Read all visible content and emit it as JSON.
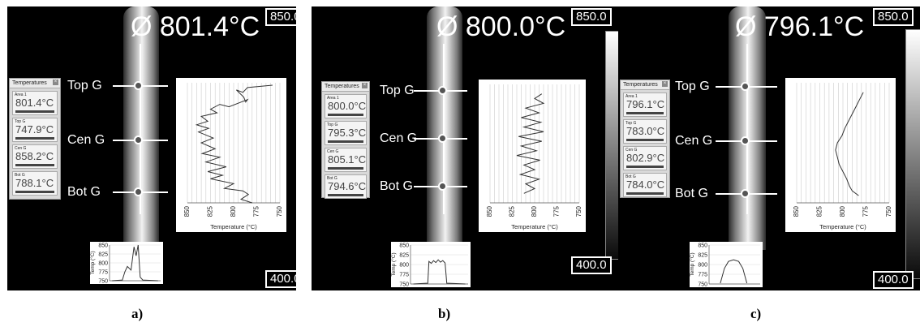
{
  "panels": [
    {
      "caption": "a)",
      "average": "Ø 801.4°C",
      "scale_max": "850.0",
      "scale_min": "400.0",
      "gauges": [
        "Top G",
        "Cen G",
        "Bot G"
      ],
      "temps_window": {
        "title": "Temperatures",
        "entries": [
          {
            "name": "Area 1",
            "value": "801.4°C"
          },
          {
            "name": "Top G",
            "value": "747.9°C"
          },
          {
            "name": "Cen G",
            "value": "858.2°C"
          },
          {
            "name": "Bot G",
            "value": "788.1°C"
          }
        ]
      },
      "profile_chart": {
        "x_ticks": [
          "850",
          "825",
          "800",
          "775",
          "750"
        ],
        "x_label": "Temperature (°C)",
        "points": [
          [
            758,
            2
          ],
          [
            785,
            4
          ],
          [
            790,
            8
          ],
          [
            797,
            6
          ],
          [
            789,
            12
          ],
          [
            787,
            16
          ],
          [
            785,
            14
          ],
          [
            805,
            20
          ],
          [
            815,
            18
          ],
          [
            825,
            22
          ],
          [
            818,
            25
          ],
          [
            835,
            28
          ],
          [
            828,
            32
          ],
          [
            840,
            35
          ],
          [
            827,
            38
          ],
          [
            838,
            41
          ],
          [
            822,
            46
          ],
          [
            835,
            50
          ],
          [
            820,
            55
          ],
          [
            834,
            59
          ],
          [
            815,
            62
          ],
          [
            830,
            66
          ],
          [
            808,
            70
          ],
          [
            828,
            74
          ],
          [
            812,
            77
          ],
          [
            825,
            80
          ],
          [
            800,
            84
          ],
          [
            810,
            88
          ],
          [
            790,
            90
          ],
          [
            784,
            93
          ],
          [
            792,
            97
          ],
          [
            780,
            100
          ]
        ]
      },
      "mini_chart": {
        "y_label": "Temp (°C)",
        "y_ticks": [
          "850",
          "825",
          "800",
          "775",
          "750"
        ],
        "points": [
          [
            0.05,
            750
          ],
          [
            0.25,
            752
          ],
          [
            0.3,
            775
          ],
          [
            0.35,
            790
          ],
          [
            0.42,
            780
          ],
          [
            0.48,
            845
          ],
          [
            0.52,
            820
          ],
          [
            0.56,
            850
          ],
          [
            0.6,
            760
          ],
          [
            0.65,
            752
          ],
          [
            0.95,
            750
          ]
        ]
      }
    },
    {
      "caption": "b)",
      "average": "Ø 800.0°C",
      "scale_max": "850.0",
      "scale_min": "400.0",
      "gauges": [
        "Top G",
        "Cen G",
        "Bot G"
      ],
      "temps_window": {
        "title": "Temperatures",
        "entries": [
          {
            "name": "Area 1",
            "value": "800.0°C"
          },
          {
            "name": "Top G",
            "value": "795.3°C"
          },
          {
            "name": "Cen G",
            "value": "805.1°C"
          },
          {
            "name": "Bot G",
            "value": "794.6°C"
          }
        ]
      },
      "profile_chart": {
        "x_ticks": [
          "850",
          "825",
          "800",
          "775",
          "750"
        ],
        "x_label": "Temperature (°C)",
        "points": [
          [
            792,
            8
          ],
          [
            800,
            12
          ],
          [
            790,
            16
          ],
          [
            810,
            20
          ],
          [
            795,
            24
          ],
          [
            815,
            28
          ],
          [
            793,
            32
          ],
          [
            812,
            36
          ],
          [
            790,
            40
          ],
          [
            818,
            44
          ],
          [
            792,
            48
          ],
          [
            815,
            52
          ],
          [
            798,
            56
          ],
          [
            820,
            60
          ],
          [
            794,
            64
          ],
          [
            812,
            68
          ],
          [
            800,
            72
          ],
          [
            816,
            76
          ],
          [
            795,
            80
          ],
          [
            810,
            84
          ],
          [
            800,
            88
          ],
          [
            812,
            92
          ]
        ]
      },
      "mini_chart": {
        "y_label": "Temp (°C)",
        "y_ticks": [
          "850",
          "825",
          "800",
          "775",
          "750"
        ],
        "points": [
          [
            0.05,
            750
          ],
          [
            0.3,
            752
          ],
          [
            0.32,
            808
          ],
          [
            0.36,
            803
          ],
          [
            0.4,
            810
          ],
          [
            0.44,
            805
          ],
          [
            0.48,
            812
          ],
          [
            0.52,
            806
          ],
          [
            0.56,
            810
          ],
          [
            0.6,
            804
          ],
          [
            0.63,
            752
          ],
          [
            0.95,
            750
          ]
        ]
      }
    },
    {
      "caption": "c)",
      "average": "Ø 796.1°C",
      "scale_max": "850.0",
      "scale_min": "400.0",
      "gauges": [
        "Top G",
        "Cen G",
        "Bot G"
      ],
      "temps_window": {
        "title": "Temperatures",
        "entries": [
          {
            "name": "Area 1",
            "value": "796.1°C"
          },
          {
            "name": "Top G",
            "value": "783.0°C"
          },
          {
            "name": "Cen G",
            "value": "802.9°C"
          },
          {
            "name": "Bot G",
            "value": "784.0°C"
          }
        ]
      },
      "profile_chart": {
        "x_ticks": [
          "850",
          "825",
          "800",
          "775",
          "750"
        ],
        "x_label": "Temperature (°C)",
        "points": [
          [
            778,
            8
          ],
          [
            782,
            14
          ],
          [
            786,
            20
          ],
          [
            790,
            26
          ],
          [
            794,
            32
          ],
          [
            798,
            38
          ],
          [
            801,
            44
          ],
          [
            806,
            50
          ],
          [
            808,
            56
          ],
          [
            806,
            62
          ],
          [
            804,
            68
          ],
          [
            800,
            74
          ],
          [
            796,
            80
          ],
          [
            793,
            86
          ],
          [
            790,
            90
          ],
          [
            783,
            94
          ]
        ]
      },
      "mini_chart": {
        "y_label": "Temp (°C)",
        "y_ticks": [
          "850",
          "825",
          "800",
          "775",
          "750"
        ],
        "points": [
          [
            0.22,
            752
          ],
          [
            0.3,
            790
          ],
          [
            0.38,
            808
          ],
          [
            0.48,
            812
          ],
          [
            0.58,
            808
          ],
          [
            0.66,
            790
          ],
          [
            0.74,
            752
          ]
        ]
      }
    }
  ]
}
